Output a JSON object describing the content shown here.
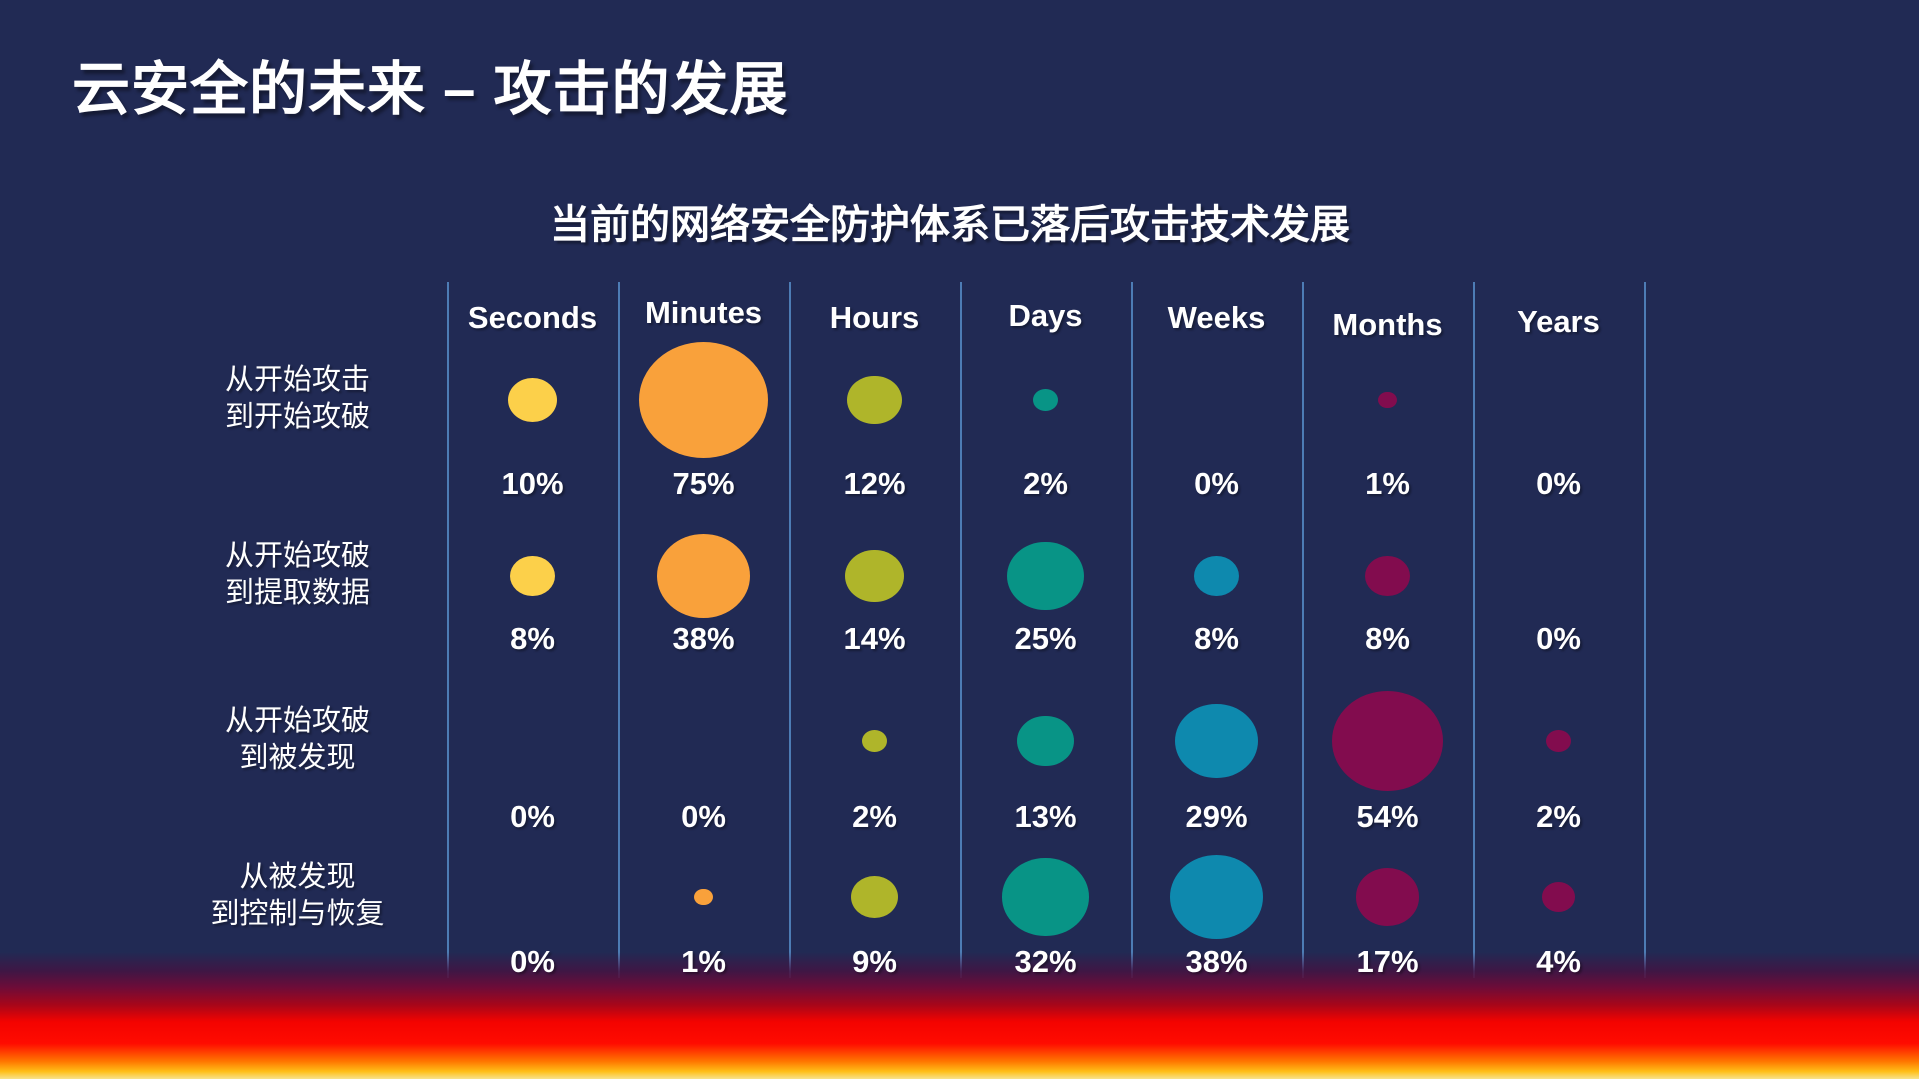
{
  "slide": {
    "title": "云安全的未来 – 攻击的发展",
    "subtitle": "当前的网络安全防护体系已落后攻击技术发展"
  },
  "colors": {
    "background": "#212A54",
    "grid_line": "#4D7CB5",
    "text": "#FFFFFF",
    "bottom_bar_gradient": [
      "#6E0C38",
      "#A90619",
      "#F40300",
      "#FF7500",
      "#F8E28C"
    ]
  },
  "chart_data": {
    "type": "bubble",
    "title": "当前的网络安全防护体系已落后攻击技术发展",
    "columns": [
      "Seconds",
      "Minutes",
      "Hours",
      "Days",
      "Weeks",
      "Months",
      "Years"
    ],
    "column_colors": [
      "#FCD04A",
      "#F9A13B",
      "#AFB52A",
      "#089486",
      "#0E89AE",
      "#820C4E",
      "#820C4E"
    ],
    "rows": [
      {
        "label": [
          "从开始攻击",
          "到开始攻破"
        ],
        "values_pct": [
          10,
          75,
          12,
          2,
          0,
          1,
          0
        ]
      },
      {
        "label": [
          "从开始攻破",
          "到提取数据"
        ],
        "values_pct": [
          8,
          38,
          14,
          25,
          8,
          8,
          0
        ]
      },
      {
        "label": [
          "从开始攻破",
          "到被发现"
        ],
        "values_pct": [
          0,
          0,
          2,
          13,
          29,
          54,
          2
        ]
      },
      {
        "label": [
          "从被发现",
          "到控制与恢复"
        ],
        "values_pct": [
          0,
          1,
          9,
          32,
          38,
          17,
          4
        ]
      }
    ],
    "value_suffix": "%",
    "legend_position": "none",
    "grid": "vertical-dividers",
    "bubble_sizing": "diameter proportional to sqrt(percent)"
  }
}
